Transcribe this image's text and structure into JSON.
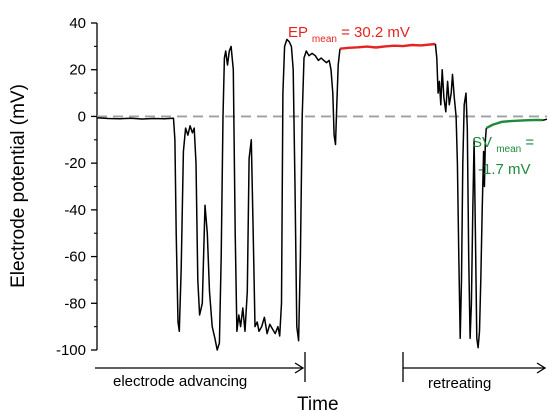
{
  "chart_data": {
    "type": "line",
    "xlabel": "Time",
    "ylabel": "Electrode potential (mV)",
    "ylim": [
      -100,
      40
    ],
    "yticks": [
      "40",
      "20",
      "0",
      "-20",
      "-40",
      "-60",
      "-80",
      "-100"
    ],
    "reference_line": {
      "y": 0,
      "style": "dashed",
      "color": "#a0a0a0"
    },
    "trace_color": "#000000",
    "segments": [
      {
        "role": "trace",
        "color": "#000000",
        "points": [
          [
            0,
            -0.6
          ],
          [
            2.5,
            -0.9
          ],
          [
            5,
            -1.0
          ],
          [
            7.5,
            -0.8
          ],
          [
            10,
            -1.1
          ],
          [
            12.5,
            -0.9
          ],
          [
            15,
            -1.0
          ],
          [
            17,
            -0.8
          ],
          [
            17.3,
            -10
          ],
          [
            17.6,
            -50
          ],
          [
            18,
            -88
          ],
          [
            18.3,
            -92
          ],
          [
            18.7,
            -65
          ],
          [
            19.2,
            -15
          ],
          [
            19.7,
            -5
          ],
          [
            20.2,
            -8
          ],
          [
            20.7,
            -4
          ],
          [
            21.2,
            -7
          ],
          [
            21.6,
            -5
          ],
          [
            22,
            -20
          ],
          [
            22.4,
            -70
          ],
          [
            22.8,
            -85
          ],
          [
            23.4,
            -80
          ],
          [
            24,
            -38
          ],
          [
            24.5,
            -50
          ],
          [
            25,
            -75
          ],
          [
            25.6,
            -90
          ],
          [
            26.2,
            -95
          ],
          [
            26.7,
            -100
          ],
          [
            27.2,
            -97
          ],
          [
            27.6,
            -60
          ],
          [
            28,
            0
          ],
          [
            28.3,
            25
          ],
          [
            28.6,
            28
          ],
          [
            29,
            22
          ],
          [
            29.4,
            28
          ],
          [
            29.8,
            30
          ],
          [
            30.3,
            20
          ],
          [
            30.7,
            -50
          ],
          [
            31.1,
            -92
          ],
          [
            31.5,
            -85
          ],
          [
            31.9,
            -90
          ],
          [
            32.4,
            -82
          ],
          [
            32.9,
            -92
          ],
          [
            33.4,
            -75
          ],
          [
            33.8,
            -18
          ],
          [
            34.3,
            -10
          ],
          [
            34.7,
            -50
          ],
          [
            35.1,
            -90
          ],
          [
            35.6,
            -88
          ],
          [
            36,
            -92
          ],
          [
            36.6,
            -90
          ],
          [
            37.2,
            -86
          ],
          [
            37.8,
            -93
          ],
          [
            38.4,
            -89
          ],
          [
            39,
            -91
          ],
          [
            39.6,
            -93
          ],
          [
            40.2,
            -90
          ],
          [
            40.6,
            -94
          ],
          [
            41,
            -80
          ],
          [
            41.3,
            10
          ],
          [
            41.7,
            30
          ],
          [
            42.2,
            33
          ],
          [
            42.7,
            32
          ],
          [
            43.2,
            30
          ],
          [
            43.6,
            20
          ],
          [
            44,
            -30
          ],
          [
            44.4,
            -90
          ],
          [
            44.8,
            -96
          ],
          [
            45.2,
            -60
          ],
          [
            45.6,
            0
          ],
          [
            46,
            25
          ],
          [
            46.5,
            28
          ],
          [
            47.1,
            26
          ],
          [
            47.8,
            27
          ],
          [
            48.5,
            26
          ],
          [
            49.2,
            24
          ],
          [
            49.8,
            25
          ],
          [
            50.4,
            24
          ],
          [
            51,
            23
          ],
          [
            51.6,
            24
          ],
          [
            52,
            20
          ],
          [
            52.4,
            10
          ],
          [
            52.7,
            -8
          ],
          [
            53,
            -12
          ],
          [
            53.3,
            5
          ],
          [
            53.6,
            22
          ],
          [
            54,
            29
          ]
        ]
      },
      {
        "role": "EP plateau",
        "color": "#e52421",
        "points": [
          [
            54,
            29
          ],
          [
            56,
            29.4
          ],
          [
            58,
            29.6
          ],
          [
            60,
            29.9
          ],
          [
            62,
            29.5
          ],
          [
            64,
            30.0
          ],
          [
            66,
            30.3
          ],
          [
            68,
            30.1
          ],
          [
            70,
            30.6
          ],
          [
            72,
            30.4
          ],
          [
            74,
            30.8
          ],
          [
            75.2,
            31.0
          ]
        ]
      },
      {
        "role": "trace",
        "color": "#000000",
        "points": [
          [
            75.2,
            31.0
          ],
          [
            75.5,
            25
          ],
          [
            75.8,
            10
          ],
          [
            76.1,
            15
          ],
          [
            76.4,
            5
          ],
          [
            76.7,
            20
          ],
          [
            77.1,
            8
          ],
          [
            77.5,
            2
          ],
          [
            77.9,
            15
          ],
          [
            78.3,
            5
          ],
          [
            78.7,
            10
          ],
          [
            79,
            18
          ],
          [
            79.4,
            8
          ],
          [
            79.8,
            0
          ],
          [
            80.1,
            -20
          ],
          [
            80.4,
            -60
          ],
          [
            80.7,
            -95
          ],
          [
            81,
            -70
          ],
          [
            81.3,
            -20
          ],
          [
            81.6,
            5
          ],
          [
            82,
            10
          ],
          [
            82.3,
            -5
          ],
          [
            82.6,
            -60
          ],
          [
            82.9,
            -95
          ],
          [
            83.2,
            -80
          ],
          [
            83.5,
            -40
          ],
          [
            83.8,
            -10
          ],
          [
            84.1,
            -50
          ],
          [
            84.4,
            -95
          ],
          [
            84.7,
            -99
          ],
          [
            85,
            -92
          ],
          [
            85.3,
            -70
          ],
          [
            85.6,
            -40
          ],
          [
            85.9,
            -15
          ],
          [
            86.1,
            -30
          ],
          [
            86.3,
            -10
          ],
          [
            86.5,
            -5
          ]
        ]
      },
      {
        "role": "SV plateau",
        "color": "#1e8a3a",
        "points": [
          [
            86.5,
            -5
          ],
          [
            88,
            -3.5
          ],
          [
            90,
            -2.3
          ],
          [
            92,
            -2.0
          ],
          [
            94,
            -1.8
          ],
          [
            96,
            -1.6
          ],
          [
            98,
            -1.5
          ],
          [
            99,
            -1.6
          ]
        ]
      },
      {
        "role": "trace",
        "color": "#000000",
        "points": [
          [
            99,
            -1.6
          ],
          [
            99.4,
            -1.5
          ],
          [
            100,
            -1.2
          ]
        ]
      }
    ],
    "annotations": {
      "ep": {
        "label": "EP",
        "subscript": "mean",
        "text": " = 30.2 mV",
        "color": "#e52421"
      },
      "sv": {
        "label": "SV",
        "subscript": "mean",
        "line1_suffix": " =",
        "line2": "-1.7 mV",
        "color": "#1e8a3a"
      }
    },
    "phases": [
      {
        "label": "electrode advancing",
        "direction": "right"
      },
      {
        "label": "retreating",
        "direction": "right"
      }
    ]
  }
}
